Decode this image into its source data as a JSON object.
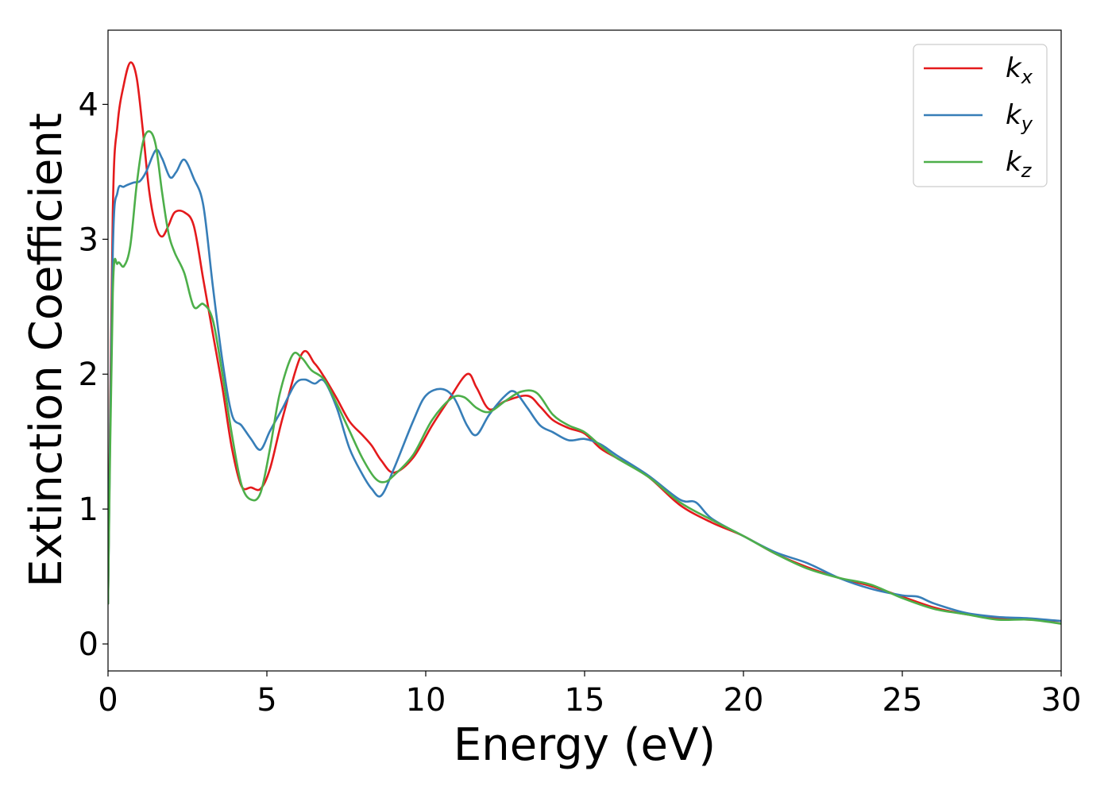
{
  "chart_data": {
    "type": "line",
    "title": "",
    "xlabel": "Energy (eV)",
    "ylabel": "Extinction Coefficient",
    "xlim": [
      0,
      30
    ],
    "ylim": [
      -0.2,
      4.55
    ],
    "xticks": [
      0,
      5,
      10,
      15,
      20,
      25,
      30
    ],
    "yticks": [
      0,
      1,
      2,
      3,
      4
    ],
    "grid": false,
    "legend_position": "top-right",
    "series": [
      {
        "name": "k_x",
        "base": "k",
        "sub": "x",
        "color": "#e41a1c",
        "x": [
          0,
          0.15,
          0.3,
          0.5,
          0.7,
          0.9,
          1.1,
          1.3,
          1.5,
          1.7,
          1.9,
          2.1,
          2.4,
          2.7,
          3.0,
          3.3,
          3.6,
          3.9,
          4.2,
          4.5,
          4.8,
          5.1,
          5.5,
          6.1,
          6.5,
          6.8,
          7.2,
          7.6,
          8.0,
          8.3,
          8.6,
          9.0,
          9.6,
          10.2,
          10.7,
          11.3,
          11.6,
          12.0,
          12.5,
          13.2,
          13.6,
          14.0,
          14.5,
          15.0,
          15.5,
          16.0,
          17.0,
          18.0,
          19.0,
          20.0,
          21.0,
          22.0,
          23.0,
          24.0,
          25.0,
          26.0,
          27.0,
          28.0,
          29.0,
          30.0
        ],
        "y": [
          0.3,
          3.2,
          3.85,
          4.15,
          4.31,
          4.2,
          3.8,
          3.35,
          3.1,
          3.02,
          3.1,
          3.2,
          3.2,
          3.1,
          2.7,
          2.3,
          1.9,
          1.45,
          1.17,
          1.16,
          1.15,
          1.3,
          1.68,
          2.15,
          2.08,
          1.98,
          1.82,
          1.65,
          1.55,
          1.47,
          1.36,
          1.27,
          1.38,
          1.62,
          1.8,
          2.0,
          1.9,
          1.74,
          1.8,
          1.84,
          1.76,
          1.66,
          1.6,
          1.56,
          1.45,
          1.38,
          1.24,
          1.03,
          0.9,
          0.8,
          0.67,
          0.57,
          0.49,
          0.43,
          0.35,
          0.27,
          0.22,
          0.19,
          0.18,
          0.17
        ]
      },
      {
        "name": "k_y",
        "base": "k",
        "sub": "y",
        "color": "#377eb8",
        "x": [
          0,
          0.15,
          0.3,
          0.5,
          0.8,
          1.0,
          1.2,
          1.5,
          1.7,
          1.95,
          2.15,
          2.4,
          2.7,
          3.0,
          3.3,
          3.6,
          3.9,
          4.2,
          4.5,
          4.8,
          5.1,
          5.5,
          5.9,
          6.2,
          6.5,
          6.8,
          7.2,
          7.6,
          8.0,
          8.3,
          8.6,
          9.0,
          9.6,
          10.0,
          10.5,
          10.9,
          11.3,
          11.6,
          12.0,
          12.5,
          12.8,
          13.2,
          13.6,
          14.0,
          14.5,
          15.0,
          15.5,
          16.0,
          17.0,
          18.0,
          18.5,
          19.0,
          20.0,
          21.0,
          22.0,
          23.0,
          24.0,
          25.0,
          25.5,
          26.0,
          27.0,
          28.0,
          29.0,
          30.0
        ],
        "y": [
          0.3,
          2.9,
          3.35,
          3.39,
          3.42,
          3.43,
          3.5,
          3.66,
          3.6,
          3.46,
          3.5,
          3.59,
          3.45,
          3.25,
          2.65,
          2.1,
          1.7,
          1.62,
          1.52,
          1.44,
          1.58,
          1.75,
          1.93,
          1.96,
          1.93,
          1.95,
          1.75,
          1.45,
          1.26,
          1.15,
          1.1,
          1.3,
          1.65,
          1.84,
          1.89,
          1.82,
          1.62,
          1.55,
          1.7,
          1.84,
          1.87,
          1.75,
          1.62,
          1.57,
          1.51,
          1.52,
          1.48,
          1.4,
          1.25,
          1.07,
          1.05,
          0.93,
          0.8,
          0.68,
          0.6,
          0.49,
          0.41,
          0.36,
          0.35,
          0.3,
          0.23,
          0.2,
          0.19,
          0.17
        ]
      },
      {
        "name": "k_z",
        "base": "k",
        "sub": "z",
        "color": "#4daf4a",
        "x": [
          0,
          0.15,
          0.3,
          0.5,
          0.7,
          0.9,
          1.1,
          1.3,
          1.5,
          1.7,
          1.9,
          2.1,
          2.4,
          2.7,
          3.0,
          3.3,
          3.6,
          3.9,
          4.2,
          4.5,
          4.8,
          5.1,
          5.4,
          5.8,
          6.1,
          6.4,
          6.8,
          7.2,
          7.6,
          8.0,
          8.4,
          8.7,
          9.0,
          9.6,
          10.2,
          10.8,
          11.2,
          11.6,
          12.0,
          12.5,
          13.0,
          13.5,
          14.0,
          14.5,
          15.0,
          15.5,
          16.0,
          17.0,
          18.0,
          19.0,
          20.0,
          21.0,
          22.0,
          23.0,
          24.0,
          25.0,
          26.0,
          27.0,
          28.0,
          29.0,
          30.0
        ],
        "y": [
          0.3,
          2.6,
          2.82,
          2.8,
          2.95,
          3.4,
          3.72,
          3.8,
          3.7,
          3.35,
          3.05,
          2.9,
          2.75,
          2.5,
          2.52,
          2.4,
          2.0,
          1.55,
          1.18,
          1.07,
          1.12,
          1.45,
          1.85,
          2.14,
          2.12,
          2.03,
          1.96,
          1.78,
          1.58,
          1.38,
          1.23,
          1.2,
          1.25,
          1.4,
          1.66,
          1.82,
          1.83,
          1.75,
          1.72,
          1.8,
          1.87,
          1.86,
          1.7,
          1.62,
          1.57,
          1.47,
          1.38,
          1.24,
          1.05,
          0.92,
          0.8,
          0.67,
          0.56,
          0.49,
          0.44,
          0.34,
          0.26,
          0.22,
          0.18,
          0.18,
          0.15
        ]
      }
    ]
  }
}
